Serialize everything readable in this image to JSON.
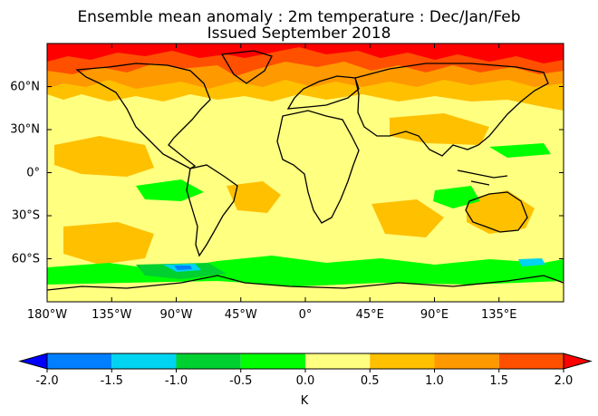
{
  "title": {
    "line1": "Ensemble mean anomaly : 2m temperature : Dec/Jan/Feb",
    "line2": "Issued September 2018"
  },
  "map": {
    "x_ticks": [
      "180°W",
      "135°W",
      "90°W",
      "45°W",
      "0°",
      "45°E",
      "90°E",
      "135°E"
    ],
    "y_ticks": [
      "60°N",
      "30°N",
      "0°",
      "30°S",
      "60°S"
    ],
    "x_tick_lon": [
      -180,
      -135,
      -90,
      -45,
      0,
      45,
      90,
      135
    ],
    "y_tick_lat": [
      60,
      30,
      0,
      -30,
      -60
    ],
    "lon_range": [
      -180,
      180
    ],
    "lat_range": [
      -90,
      90
    ]
  },
  "colorbar": {
    "levels": [
      "-2.0",
      "-1.5",
      "-1.0",
      "-0.5",
      "0.0",
      "0.5",
      "1.0",
      "1.5",
      "2.0"
    ],
    "colors": [
      "#0000ff",
      "#0080ff",
      "#00d4f0",
      "#00d030",
      "#00ff00",
      "#ffff80",
      "#ffc000",
      "#ff9900",
      "#ff5000",
      "#ff0000"
    ],
    "unit": "K"
  },
  "colors": {
    "background_anomaly": "#ffff80",
    "land_outline": "#000000"
  }
}
